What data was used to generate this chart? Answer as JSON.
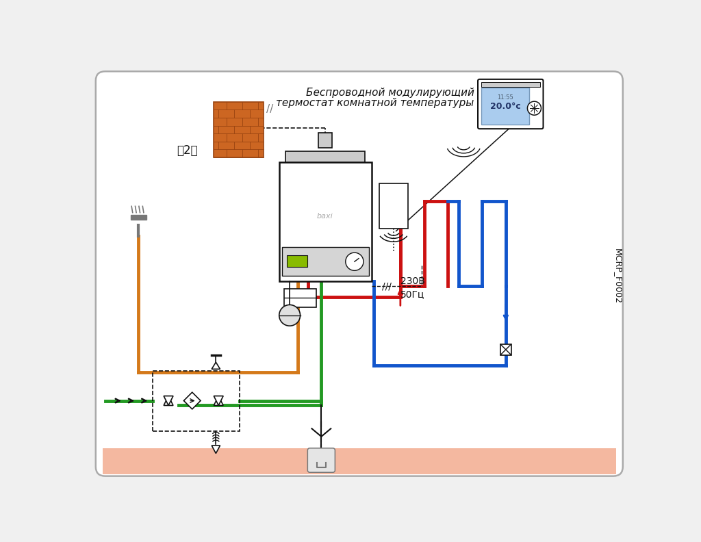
{
  "bg_color": "#f0f0f0",
  "border_color": "#aaaaaa",
  "thermostat_line1": "Беспроводной модулирующий",
  "thermostat_line2": "термостат комнатной температуры",
  "code_label": "MCRP_F0002",
  "floor_color": "#f4b8a0",
  "orange": "#d4791a",
  "red": "#cc1111",
  "blue": "#1155cc",
  "green": "#229922",
  "black": "#111111",
  "gray": "#777777",
  "light_gray": "#cccccc",
  "brick_face": "#cc6622",
  "brick_edge": "#994411",
  "panel_green": "#88bb00",
  "screen_blue": "#aaccee",
  "lw": 3.5
}
